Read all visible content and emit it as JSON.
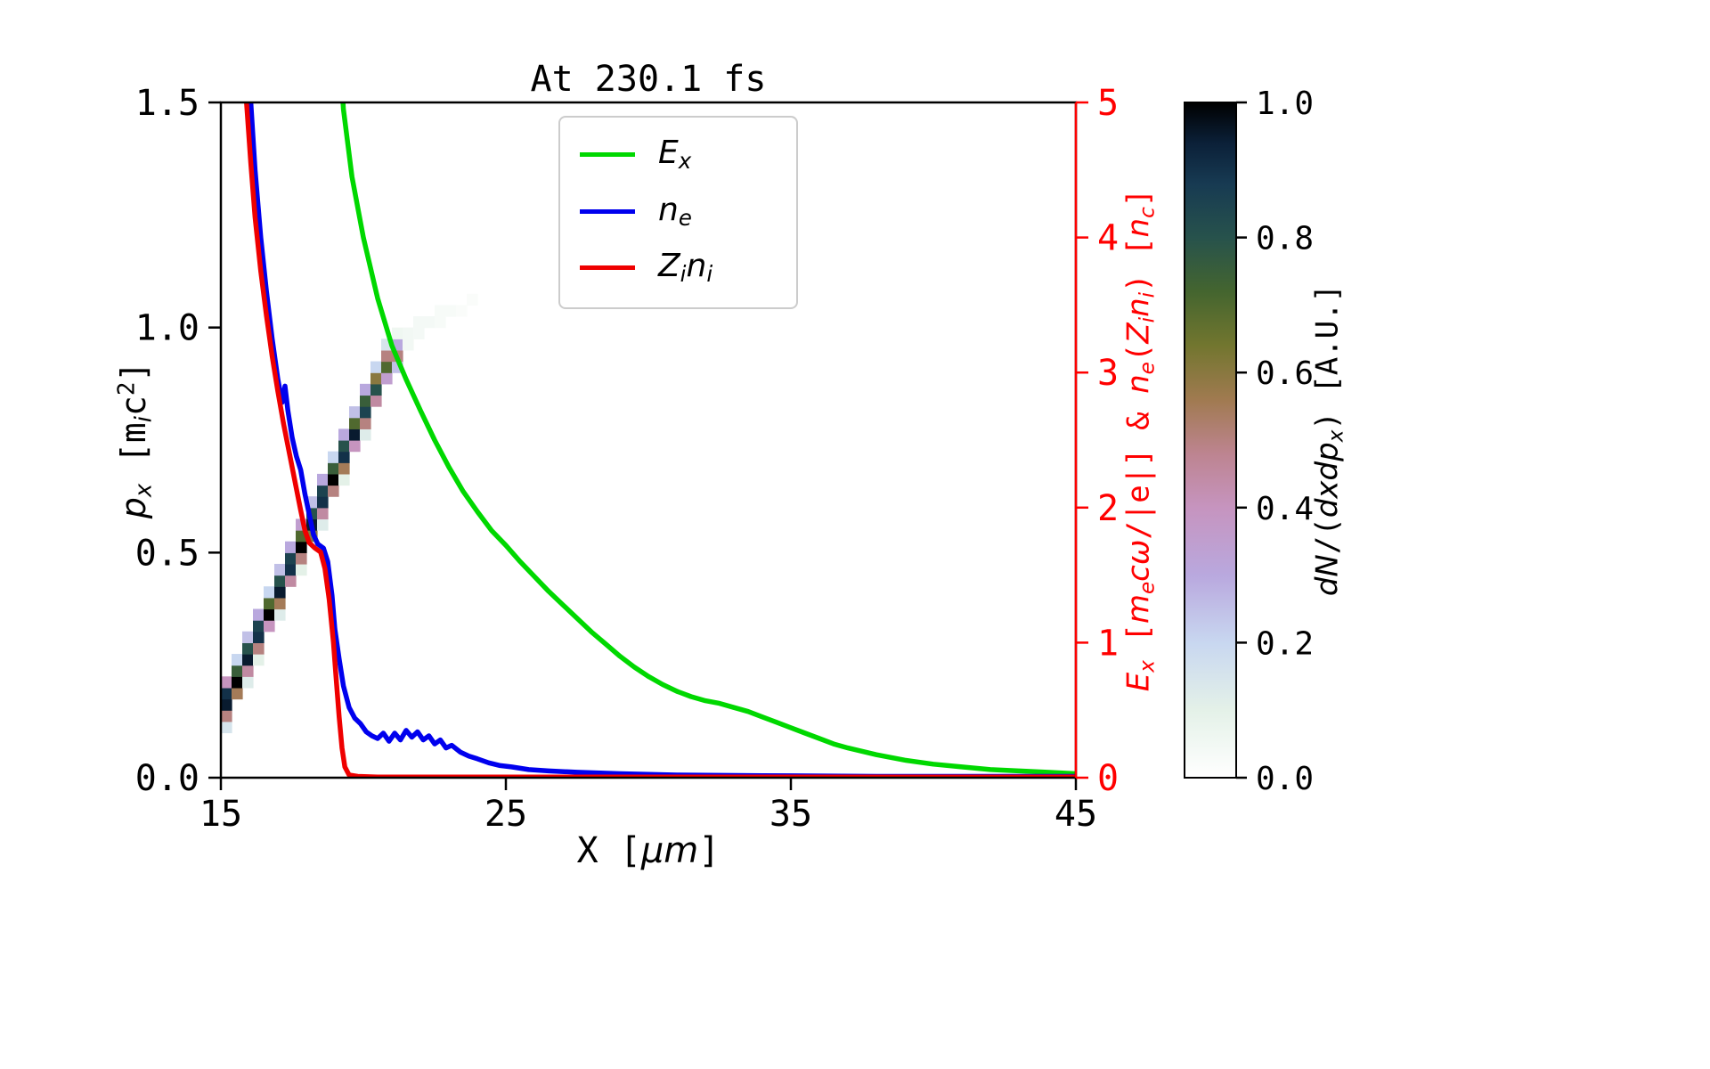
{
  "figure": {
    "background": "#ffffff"
  },
  "chart_data": {
    "type": "line+heatmap",
    "title": "At 230.1 fs",
    "xlabel": "X [*μm*]",
    "xlim": [
      15,
      45
    ],
    "xticks": [
      15,
      25,
      35,
      45
    ],
    "xtick_labels": [
      "15",
      "25",
      "35",
      "45"
    ],
    "left_axis": {
      "label": "*p*_{*x*} [m_{*i*}c^{2}]",
      "lim": [
        0,
        1.5
      ],
      "tick_values": [
        0,
        0.5,
        1.0,
        1.5
      ],
      "ticks": [
        "0.0",
        "0.5",
        "1.0",
        "1.5"
      ]
    },
    "right_axis": {
      "label": "*E*_{*x*} [*m*_{*e*}*cω*/|e|] & *n*_{*e*}(*Z*_{*i*}*n*_{*i*}) [*n*_{*c*}]",
      "lim": [
        0,
        5
      ],
      "tick_values": [
        0,
        1,
        2,
        3,
        4,
        5
      ],
      "ticks": [
        "0",
        "1",
        "2",
        "3",
        "4",
        "5"
      ],
      "color": "#ff0000"
    },
    "legend": {
      "position": "upper center"
    },
    "series": [
      {
        "name": "Ex",
        "label": "*E*_{*x*}",
        "color": "#00d800",
        "axis": "right",
        "points": [
          [
            19.1,
            5.6
          ],
          [
            19.3,
            4.95
          ],
          [
            19.6,
            4.45
          ],
          [
            20,
            4.0
          ],
          [
            20.5,
            3.55
          ],
          [
            21,
            3.2
          ],
          [
            21.5,
            2.95
          ],
          [
            22,
            2.72
          ],
          [
            22.5,
            2.5
          ],
          [
            23,
            2.3
          ],
          [
            23.5,
            2.12
          ],
          [
            24,
            1.97
          ],
          [
            24.5,
            1.83
          ],
          [
            25,
            1.72
          ],
          [
            25.5,
            1.6
          ],
          [
            26,
            1.49
          ],
          [
            26.5,
            1.38
          ],
          [
            27,
            1.28
          ],
          [
            27.5,
            1.18
          ],
          [
            28,
            1.08
          ],
          [
            28.5,
            0.99
          ],
          [
            29,
            0.9
          ],
          [
            29.5,
            0.82
          ],
          [
            30,
            0.75
          ],
          [
            30.5,
            0.69
          ],
          [
            31,
            0.64
          ],
          [
            31.5,
            0.6
          ],
          [
            32,
            0.57
          ],
          [
            32.5,
            0.55
          ],
          [
            33,
            0.52
          ],
          [
            33.5,
            0.49
          ],
          [
            34,
            0.45
          ],
          [
            34.5,
            0.41
          ],
          [
            35,
            0.37
          ],
          [
            35.5,
            0.33
          ],
          [
            36,
            0.29
          ],
          [
            36.5,
            0.25
          ],
          [
            37,
            0.22
          ],
          [
            38,
            0.17
          ],
          [
            39,
            0.13
          ],
          [
            40,
            0.1
          ],
          [
            41,
            0.08
          ],
          [
            42,
            0.06
          ],
          [
            43,
            0.05
          ],
          [
            44,
            0.04
          ],
          [
            45,
            0.03
          ]
        ]
      },
      {
        "name": "ne",
        "label": "*n*_{*e*}",
        "color": "#0000ee",
        "axis": "right",
        "points": [
          [
            15.9,
            6.5
          ],
          [
            16.05,
            5.0
          ],
          [
            16.2,
            4.5
          ],
          [
            16.4,
            4.0
          ],
          [
            16.6,
            3.6
          ],
          [
            16.8,
            3.25
          ],
          [
            17.0,
            2.95
          ],
          [
            17.15,
            2.78
          ],
          [
            17.25,
            2.9
          ],
          [
            17.35,
            2.72
          ],
          [
            17.5,
            2.52
          ],
          [
            17.65,
            2.38
          ],
          [
            17.8,
            2.28
          ],
          [
            17.95,
            2.1
          ],
          [
            18.1,
            1.95
          ],
          [
            18.25,
            1.8
          ],
          [
            18.4,
            1.73
          ],
          [
            18.6,
            1.7
          ],
          [
            18.75,
            1.6
          ],
          [
            18.9,
            1.35
          ],
          [
            19.0,
            1.1
          ],
          [
            19.15,
            0.88
          ],
          [
            19.3,
            0.68
          ],
          [
            19.5,
            0.52
          ],
          [
            19.7,
            0.44
          ],
          [
            19.9,
            0.4
          ],
          [
            20.1,
            0.34
          ],
          [
            20.3,
            0.31
          ],
          [
            20.5,
            0.29
          ],
          [
            20.7,
            0.33
          ],
          [
            20.9,
            0.27
          ],
          [
            21.1,
            0.33
          ],
          [
            21.3,
            0.28
          ],
          [
            21.5,
            0.35
          ],
          [
            21.7,
            0.3
          ],
          [
            21.9,
            0.34
          ],
          [
            22.1,
            0.28
          ],
          [
            22.3,
            0.31
          ],
          [
            22.5,
            0.25
          ],
          [
            22.7,
            0.28
          ],
          [
            22.9,
            0.22
          ],
          [
            23.1,
            0.24
          ],
          [
            23.4,
            0.19
          ],
          [
            23.7,
            0.16
          ],
          [
            24.0,
            0.14
          ],
          [
            24.4,
            0.11
          ],
          [
            24.8,
            0.09
          ],
          [
            25.2,
            0.08
          ],
          [
            25.8,
            0.06
          ],
          [
            26.5,
            0.05
          ],
          [
            27.5,
            0.04
          ],
          [
            29,
            0.03
          ],
          [
            31,
            0.02
          ],
          [
            34,
            0.015
          ],
          [
            38,
            0.01
          ],
          [
            45,
            0.01
          ]
        ]
      },
      {
        "name": "Zini",
        "label": "*Z*_{*i*}*n*_{*i*}",
        "color": "#ef0000",
        "axis": "right",
        "points": [
          [
            15.75,
            6.5
          ],
          [
            15.9,
            5.0
          ],
          [
            16.05,
            4.55
          ],
          [
            16.2,
            4.15
          ],
          [
            16.4,
            3.75
          ],
          [
            16.6,
            3.42
          ],
          [
            16.8,
            3.12
          ],
          [
            17.0,
            2.86
          ],
          [
            17.2,
            2.62
          ],
          [
            17.35,
            2.46
          ],
          [
            17.5,
            2.3
          ],
          [
            17.65,
            2.14
          ],
          [
            17.8,
            1.98
          ],
          [
            17.95,
            1.83
          ],
          [
            18.1,
            1.74
          ],
          [
            18.3,
            1.7
          ],
          [
            18.5,
            1.67
          ],
          [
            18.65,
            1.55
          ],
          [
            18.8,
            1.32
          ],
          [
            18.95,
            1.0
          ],
          [
            19.05,
            0.72
          ],
          [
            19.15,
            0.45
          ],
          [
            19.25,
            0.22
          ],
          [
            19.35,
            0.08
          ],
          [
            19.5,
            0.02
          ],
          [
            19.8,
            0.01
          ],
          [
            20.5,
            0.005
          ],
          [
            45,
            0.005
          ]
        ]
      }
    ],
    "heatmap": {
      "x0": 15,
      "dx": 0.375,
      "y0": 0,
      "dy": 0.025,
      "value_range": [
        0,
        1
      ],
      "cells": [
        [
          0,
          4,
          0.15
        ],
        [
          0,
          5,
          0.5
        ],
        [
          0,
          6,
          0.95
        ],
        [
          0,
          7,
          0.9
        ],
        [
          0,
          8,
          0.4
        ],
        [
          1,
          7,
          0.55
        ],
        [
          1,
          8,
          1.0
        ],
        [
          1,
          9,
          0.75
        ],
        [
          1,
          10,
          0.2
        ],
        [
          2,
          8,
          0.12
        ],
        [
          2,
          9,
          0.45
        ],
        [
          2,
          10,
          0.95
        ],
        [
          2,
          11,
          0.8
        ],
        [
          2,
          12,
          0.25
        ],
        [
          3,
          10,
          0.1
        ],
        [
          3,
          11,
          0.5
        ],
        [
          3,
          12,
          0.9
        ],
        [
          3,
          13,
          0.85
        ],
        [
          3,
          14,
          0.3
        ],
        [
          4,
          13,
          0.4
        ],
        [
          4,
          14,
          1.0
        ],
        [
          4,
          15,
          0.7
        ],
        [
          4,
          16,
          0.2
        ],
        [
          5,
          14,
          0.12
        ],
        [
          5,
          15,
          0.55
        ],
        [
          5,
          16,
          0.95
        ],
        [
          5,
          17,
          0.8
        ],
        [
          5,
          18,
          0.25
        ],
        [
          6,
          17,
          0.45
        ],
        [
          6,
          18,
          0.9
        ],
        [
          6,
          19,
          0.85
        ],
        [
          6,
          20,
          0.3
        ],
        [
          7,
          18,
          0.1
        ],
        [
          7,
          19,
          0.5
        ],
        [
          7,
          20,
          1.0
        ],
        [
          7,
          21,
          0.7
        ],
        [
          7,
          22,
          0.35
        ],
        [
          8,
          21,
          0.6
        ],
        [
          8,
          22,
          0.95
        ],
        [
          8,
          23,
          0.8
        ],
        [
          8,
          24,
          0.25
        ],
        [
          9,
          22,
          0.12
        ],
        [
          9,
          23,
          0.45
        ],
        [
          9,
          24,
          0.9
        ],
        [
          9,
          25,
          0.85
        ],
        [
          9,
          26,
          0.3
        ],
        [
          10,
          25,
          0.5
        ],
        [
          10,
          26,
          1.0
        ],
        [
          10,
          27,
          0.75
        ],
        [
          10,
          28,
          0.2
        ],
        [
          11,
          26,
          0.1
        ],
        [
          11,
          27,
          0.55
        ],
        [
          11,
          28,
          0.9
        ],
        [
          11,
          29,
          0.8
        ],
        [
          11,
          30,
          0.3
        ],
        [
          12,
          29,
          0.4
        ],
        [
          12,
          30,
          0.95
        ],
        [
          12,
          31,
          0.7
        ],
        [
          12,
          32,
          0.25
        ],
        [
          13,
          30,
          0.12
        ],
        [
          13,
          31,
          0.5
        ],
        [
          13,
          32,
          0.85
        ],
        [
          13,
          33,
          0.75
        ],
        [
          13,
          34,
          0.3
        ],
        [
          14,
          33,
          0.45
        ],
        [
          14,
          34,
          0.8
        ],
        [
          14,
          35,
          0.6
        ],
        [
          14,
          36,
          0.2
        ],
        [
          15,
          35,
          0.35
        ],
        [
          15,
          36,
          0.7
        ],
        [
          15,
          37,
          0.5
        ],
        [
          15,
          38,
          0.15
        ],
        [
          16,
          36,
          0.25
        ],
        [
          16,
          37,
          0.5
        ],
        [
          16,
          38,
          0.3
        ],
        [
          16,
          39,
          0.06
        ],
        [
          17,
          38,
          0.05
        ],
        [
          17,
          39,
          0.05
        ],
        [
          18,
          39,
          0.04
        ],
        [
          18,
          40,
          0.04
        ],
        [
          19,
          40,
          0.04
        ],
        [
          20,
          40,
          0.03
        ],
        [
          20,
          41,
          0.03
        ],
        [
          21,
          41,
          0.03
        ],
        [
          22,
          41,
          0.02
        ],
        [
          23,
          42,
          0.02
        ]
      ]
    },
    "colorbar": {
      "label": "*dN*/(*dxdp*_{*x*}) [A.U.]",
      "lim": [
        0,
        1
      ],
      "tick_values": [
        0,
        0.2,
        0.4,
        0.6,
        0.8,
        1.0
      ],
      "ticks": [
        "0.0",
        "0.2",
        "0.4",
        "0.6",
        "0.8",
        "1.0"
      ],
      "stops": [
        [
          0.0,
          "#ffffff"
        ],
        [
          0.1,
          "#e4f1e8"
        ],
        [
          0.2,
          "#c8d7f0"
        ],
        [
          0.3,
          "#b9a8de"
        ],
        [
          0.4,
          "#c694bf"
        ],
        [
          0.48,
          "#bd8490"
        ],
        [
          0.56,
          "#a07a50"
        ],
        [
          0.64,
          "#72762f"
        ],
        [
          0.72,
          "#44652f"
        ],
        [
          0.8,
          "#27524c"
        ],
        [
          0.88,
          "#173a52"
        ],
        [
          0.94,
          "#0b2038"
        ],
        [
          1.0,
          "#000000"
        ]
      ]
    }
  }
}
